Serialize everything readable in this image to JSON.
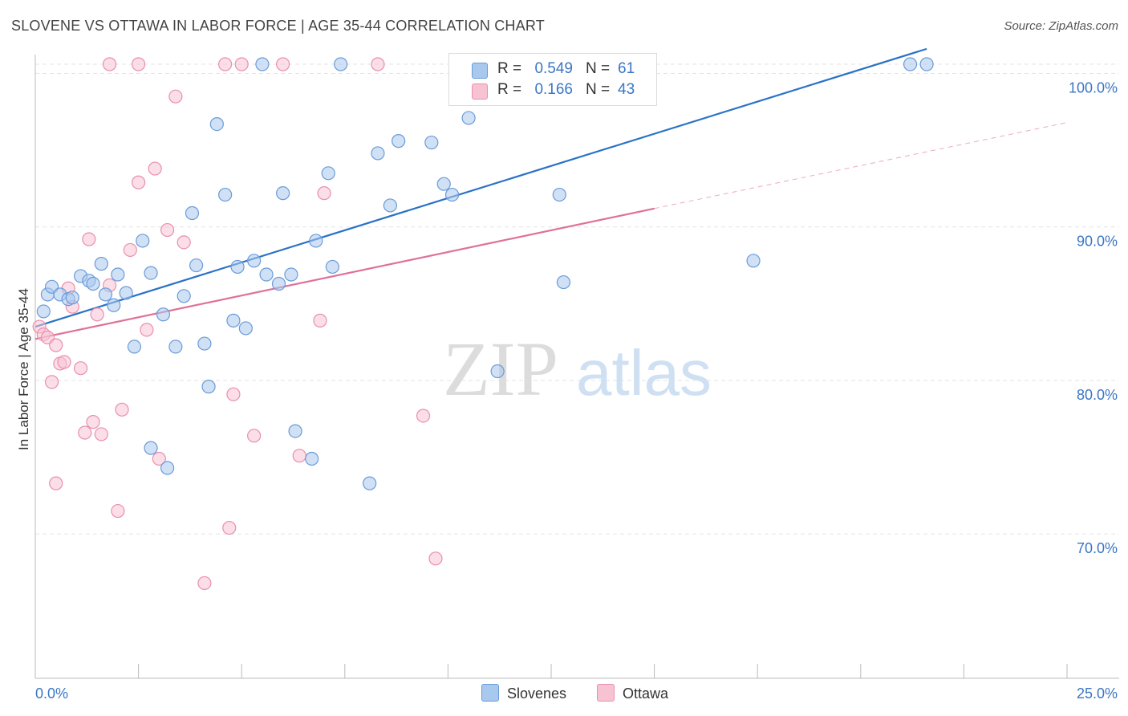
{
  "title": "SLOVENE VS OTTAWA IN LABOR FORCE | AGE 35-44 CORRELATION CHART",
  "source": "Source: ZipAtlas.com",
  "watermark": {
    "zip": "ZIP",
    "atlas": "atlas"
  },
  "colors": {
    "blue_fill": "#a9c8ee",
    "blue_stroke": "#6a9bd8",
    "blue_line": "#2a72c8",
    "pink_fill": "#f7c3d3",
    "pink_stroke": "#e98fac",
    "pink_line": "#e0709a",
    "axis_text": "#3b76c4",
    "grid": "#e3e3e3"
  },
  "legend_top": {
    "rows": [
      {
        "r_label": "R =",
        "r_value": "0.549",
        "n_label": "N =",
        "n_value": "61"
      },
      {
        "r_label": "R =",
        "r_value": "0.166",
        "n_label": "N =",
        "n_value": "43"
      }
    ]
  },
  "legend_bottom": {
    "items": [
      "Slovenes",
      "Ottawa"
    ]
  },
  "chart_data": {
    "type": "scatter",
    "title": "SLOVENE VS OTTAWA IN LABOR FORCE | AGE 35-44 CORRELATION CHART",
    "ylabel": "In Labor Force | Age 35-44",
    "xlabel": "",
    "xlim": [
      0,
      25
    ],
    "ylim": [
      60.6,
      100.6
    ],
    "x_tick_labels": [
      "0.0%",
      "25.0%"
    ],
    "y_tick_labels": [
      "100.0%",
      "90.0%",
      "80.0%",
      "70.0%"
    ],
    "y_ticks": [
      100,
      90,
      80,
      70
    ],
    "x_minor_ticks": [
      0,
      2.5,
      5,
      7.5,
      10,
      12.5,
      15,
      17.5,
      20,
      22.5,
      25
    ],
    "grid": true,
    "legend_position": "top-center",
    "series": [
      {
        "name": "Slovenes",
        "r": 0.549,
        "n": 61,
        "trend": {
          "x": [
            0,
            21.6
          ],
          "y": [
            83.5,
            101.6
          ],
          "style": "solid"
        },
        "points": [
          [
            0.2,
            84.5
          ],
          [
            0.3,
            85.6
          ],
          [
            0.4,
            86.1
          ],
          [
            0.6,
            85.6
          ],
          [
            0.8,
            85.3
          ],
          [
            0.9,
            85.4
          ],
          [
            1.1,
            86.8
          ],
          [
            1.3,
            86.5
          ],
          [
            1.4,
            86.3
          ],
          [
            1.6,
            87.6
          ],
          [
            1.7,
            85.6
          ],
          [
            1.9,
            84.9
          ],
          [
            2.0,
            86.9
          ],
          [
            2.2,
            85.7
          ],
          [
            2.4,
            82.2
          ],
          [
            2.6,
            89.1
          ],
          [
            2.8,
            87.0
          ],
          [
            3.1,
            84.3
          ],
          [
            2.8,
            75.6
          ],
          [
            3.2,
            74.3
          ],
          [
            3.4,
            82.2
          ],
          [
            3.6,
            85.5
          ],
          [
            3.8,
            90.9
          ],
          [
            3.9,
            87.5
          ],
          [
            4.1,
            82.4
          ],
          [
            4.2,
            79.6
          ],
          [
            4.4,
            96.7
          ],
          [
            4.6,
            92.1
          ],
          [
            4.8,
            83.9
          ],
          [
            4.9,
            87.4
          ],
          [
            5.1,
            83.4
          ],
          [
            5.3,
            87.8
          ],
          [
            5.6,
            86.9
          ],
          [
            5.9,
            86.3
          ],
          [
            6.0,
            92.2
          ],
          [
            6.2,
            86.9
          ],
          [
            6.3,
            76.7
          ],
          [
            6.7,
            74.9
          ],
          [
            6.8,
            89.1
          ],
          [
            7.1,
            93.5
          ],
          [
            7.2,
            87.4
          ],
          [
            8.1,
            73.3
          ],
          [
            8.3,
            94.8
          ],
          [
            8.6,
            91.4
          ],
          [
            8.8,
            95.6
          ],
          [
            9.6,
            95.5
          ],
          [
            9.9,
            92.8
          ],
          [
            10.1,
            92.1
          ],
          [
            10.5,
            97.1
          ],
          [
            11.2,
            80.6
          ],
          [
            12.7,
            92.1
          ],
          [
            12.8,
            86.4
          ],
          [
            13.5,
            100.6
          ],
          [
            14.0,
            100.6
          ],
          [
            14.4,
            100.6
          ],
          [
            14.8,
            100.6
          ],
          [
            17.4,
            87.8
          ],
          [
            21.2,
            100.6
          ],
          [
            21.6,
            100.6
          ],
          [
            5.5,
            100.6
          ],
          [
            7.4,
            100.6
          ]
        ]
      },
      {
        "name": "Ottawa",
        "r": 0.166,
        "n": 43,
        "trend": {
          "x": [
            0,
            15
          ],
          "y": [
            82.7,
            91.2
          ],
          "style": "solid"
        },
        "trend_extension": {
          "x": [
            15,
            25
          ],
          "y": [
            91.2,
            96.8
          ],
          "style": "dashed"
        },
        "points": [
          [
            0.1,
            83.5
          ],
          [
            0.2,
            83.0
          ],
          [
            0.3,
            82.8
          ],
          [
            0.4,
            79.9
          ],
          [
            0.5,
            82.3
          ],
          [
            0.5,
            73.3
          ],
          [
            0.6,
            81.1
          ],
          [
            0.7,
            81.2
          ],
          [
            0.8,
            86.0
          ],
          [
            0.9,
            84.8
          ],
          [
            1.1,
            80.8
          ],
          [
            1.2,
            76.6
          ],
          [
            1.3,
            89.2
          ],
          [
            1.4,
            77.3
          ],
          [
            1.5,
            84.3
          ],
          [
            1.6,
            76.5
          ],
          [
            1.8,
            86.2
          ],
          [
            2.0,
            71.5
          ],
          [
            2.1,
            78.1
          ],
          [
            2.3,
            88.5
          ],
          [
            2.5,
            92.9
          ],
          [
            2.7,
            83.3
          ],
          [
            2.9,
            93.8
          ],
          [
            3.0,
            74.9
          ],
          [
            3.2,
            89.8
          ],
          [
            3.4,
            98.5
          ],
          [
            3.6,
            89.0
          ],
          [
            4.1,
            66.8
          ],
          [
            4.7,
            70.4
          ],
          [
            4.8,
            79.1
          ],
          [
            5.3,
            76.4
          ],
          [
            6.4,
            75.1
          ],
          [
            6.9,
            83.9
          ],
          [
            7.0,
            92.2
          ],
          [
            9.4,
            77.7
          ],
          [
            9.7,
            68.4
          ],
          [
            1.8,
            100.6
          ],
          [
            2.5,
            100.6
          ],
          [
            4.6,
            100.6
          ],
          [
            5.0,
            100.6
          ],
          [
            6.0,
            100.6
          ],
          [
            8.3,
            100.6
          ],
          [
            10.7,
            100.6
          ]
        ]
      }
    ]
  }
}
